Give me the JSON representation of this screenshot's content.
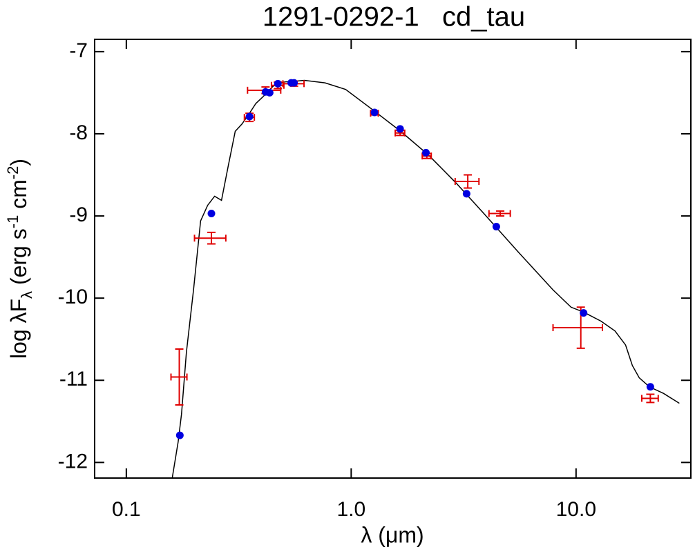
{
  "chart_data": {
    "type": "sed",
    "title": "1291-0292-1   cd_tau",
    "x_label": "λ (μm)",
    "y_label": {
      "main": "log λF",
      "sub": "λ",
      "unit_a": " (erg s",
      "sup_a": "-1",
      "unit_b": " cm",
      "sup_b": "-2",
      "unit_c": ")"
    },
    "xscale": "log",
    "xlim": [
      0.0723,
      32.4
    ],
    "xticks": [
      0.1,
      {
        "value": 1,
        "label": "1.0"
      },
      {
        "value": 10,
        "label": "10.0"
      }
    ],
    "ylim": [
      -12.19,
      -6.85
    ],
    "yticks": [
      -12,
      -11,
      -10,
      -9,
      -8,
      -7
    ],
    "model": {
      "color": "#000000",
      "x": [
        0.16,
        0.17,
        0.176,
        0.185,
        0.199,
        0.214,
        0.23,
        0.247,
        0.265,
        0.284,
        0.305,
        0.327,
        0.351,
        0.377,
        0.405,
        0.45,
        0.5,
        0.62,
        0.765,
        0.945,
        1.25,
        1.66,
        2.21,
        2.93,
        3.89,
        5.54,
        7.9,
        9.5,
        10.8,
        12.9,
        14.9,
        16.6,
        17.8,
        19.1,
        21.2,
        24.5,
        28.8
      ],
      "values": [
        -12.19,
        -11.75,
        -11.41,
        -10.66,
        -9.9,
        -9.06,
        -8.87,
        -8.76,
        -8.81,
        -8.39,
        -7.97,
        -7.88,
        -7.76,
        -7.63,
        -7.55,
        -7.42,
        -7.37,
        -7.35,
        -7.38,
        -7.46,
        -7.71,
        -7.97,
        -8.26,
        -8.6,
        -8.97,
        -9.44,
        -9.9,
        -10.11,
        -10.17,
        -10.28,
        -10.4,
        -10.57,
        -10.82,
        -10.97,
        -11.08,
        -11.16,
        -11.28
      ]
    },
    "observed": {
      "color": "#e00000",
      "x": [
        0.172,
        0.239,
        0.353,
        0.416,
        0.472,
        0.557,
        1.27,
        1.65,
        2.17,
        3.3,
        4.6,
        10.5,
        21.4
      ],
      "xerr": [
        0.014,
        0.038,
        0.018,
        0.07,
        0.03,
        0.06,
        0.05,
        0.08,
        0.1,
        0.4,
        0.5,
        2.6,
        1.8
      ],
      "values": [
        -10.96,
        -9.27,
        -7.8,
        -7.47,
        -7.41,
        -7.39,
        -7.75,
        -7.99,
        -8.27,
        -8.58,
        -8.97,
        -10.36,
        -11.22
      ],
      "yerr": [
        0.34,
        0.07,
        0.05,
        0.04,
        0.04,
        0.03,
        0.02,
        0.03,
        0.03,
        0.08,
        0.03,
        0.25,
        0.05
      ]
    },
    "synthetic": {
      "color": "#0000e0",
      "x": [
        0.173,
        0.239,
        0.353,
        0.416,
        0.434,
        0.472,
        0.541,
        0.557,
        1.27,
        1.65,
        2.15,
        3.26,
        4.42,
        10.8,
        21.4
      ],
      "values": [
        -11.67,
        -8.97,
        -7.79,
        -7.49,
        -7.5,
        -7.39,
        -7.38,
        -7.38,
        -7.74,
        -7.94,
        -8.23,
        -8.73,
        -9.13,
        -10.18,
        -11.08
      ]
    }
  }
}
